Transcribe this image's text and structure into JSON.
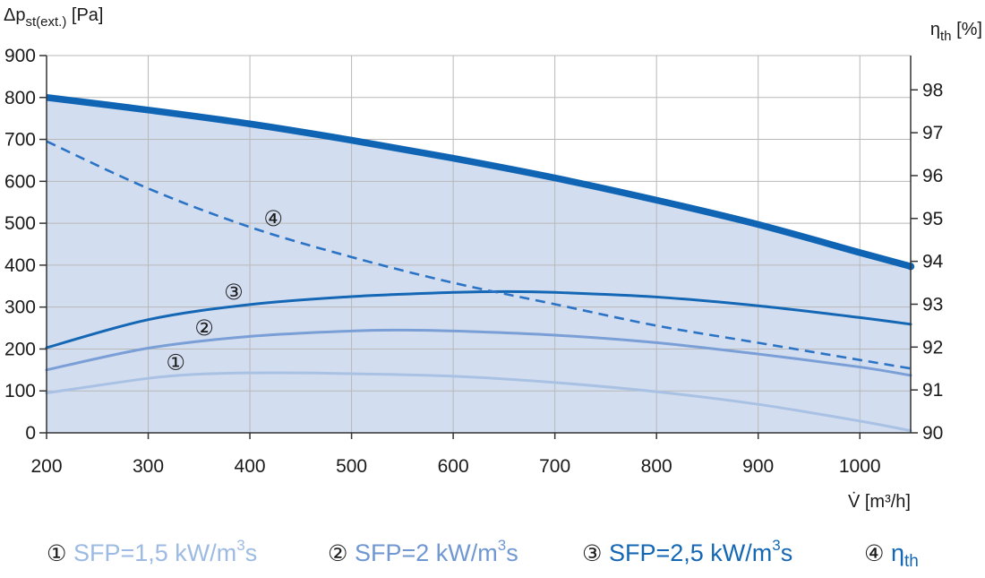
{
  "chart_data": {
    "type": "line",
    "x_axis": {
      "label_symbol": "V̇",
      "label_unit": "[m³/h]",
      "range": [
        200,
        1050
      ],
      "ticks": [
        200,
        300,
        400,
        500,
        600,
        700,
        800,
        900,
        1000
      ]
    },
    "y_axis_left": {
      "label_main": "Δp",
      "label_sub": "st(ext.)",
      "label_unit": "[Pa]",
      "range": [
        0,
        900
      ],
      "ticks": [
        0,
        100,
        200,
        300,
        400,
        500,
        600,
        700,
        800,
        900
      ]
    },
    "y_axis_right": {
      "label_main": "η",
      "label_sub": "th",
      "label_unit": "[%]",
      "range": [
        90,
        98.8
      ],
      "ticks": [
        90,
        91,
        92,
        93,
        94,
        95,
        96,
        97,
        98
      ]
    },
    "grid": true,
    "legend_position": "bottom",
    "envelope": {
      "x": [
        200,
        300,
        400,
        500,
        600,
        700,
        800,
        900,
        1000,
        1050
      ],
      "y": [
        800,
        770,
        737,
        698,
        655,
        608,
        555,
        497,
        430,
        397
      ]
    },
    "series": [
      {
        "marker": "①",
        "x": [
          200,
          300,
          350,
          400,
          450,
          500,
          600,
          700,
          800,
          900,
          1000,
          1050
        ],
        "y": [
          95,
          130,
          140,
          143,
          143,
          141,
          135,
          120,
          98,
          68,
          28,
          5
        ],
        "color": "#a9c2e4",
        "axis": "left",
        "dashed": false,
        "marker_label_x": 327,
        "marker_label_y": 168
      },
      {
        "marker": "②",
        "x": [
          200,
          300,
          400,
          500,
          550,
          600,
          700,
          800,
          900,
          1000,
          1050
        ],
        "y": [
          150,
          202,
          230,
          243,
          245,
          243,
          233,
          215,
          188,
          157,
          137
        ],
        "color": "#7a9fd6",
        "axis": "left",
        "dashed": false,
        "marker_label_x": 355,
        "marker_label_y": 250
      },
      {
        "marker": "③",
        "x": [
          200,
          300,
          400,
          500,
          600,
          650,
          700,
          800,
          900,
          1000,
          1050
        ],
        "y": [
          203,
          270,
          306,
          325,
          335,
          337,
          335,
          324,
          303,
          275,
          259
        ],
        "color": "#1467b4",
        "axis": "left",
        "dashed": false,
        "marker_label_x": 384,
        "marker_label_y": 336
      },
      {
        "marker": "④",
        "x": [
          200,
          300,
          400,
          500,
          600,
          700,
          800,
          900,
          1000,
          1050
        ],
        "y": [
          96.8,
          95.7,
          94.8,
          94.1,
          93.5,
          93.0,
          92.5,
          92.1,
          91.7,
          91.5
        ],
        "color": "#2b73c5",
        "axis": "right",
        "dashed": true,
        "marker_label_x": 423,
        "marker_label_y": 95.0
      }
    ],
    "legend": [
      {
        "symbol": "①",
        "text": "SFP=1,5 kW/m",
        "sup": "3",
        "tail": "s",
        "color": "#9dbbe2"
      },
      {
        "symbol": "②",
        "text": "SFP=2 kW/m",
        "sup": "3",
        "tail": "s",
        "color": "#6f97d2"
      },
      {
        "symbol": "③",
        "text": "SFP=2,5 kW/m",
        "sup": "3",
        "tail": "s",
        "color": "#1467b4"
      },
      {
        "symbol": "④",
        "text": "η",
        "sub": "th",
        "color": "#1467b4"
      }
    ],
    "colors": {
      "envelope_fill": "#d3ddf0",
      "envelope_line": "#0f64b4",
      "grid": "#b8b8b8",
      "axis": "#333333",
      "marker_circle": "#1a1a1a"
    }
  }
}
